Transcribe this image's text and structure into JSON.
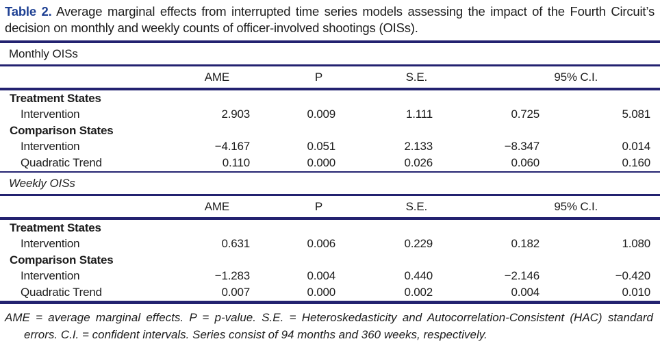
{
  "caption": {
    "label": "Table 2.",
    "text": "Average marginal effects from interrupted time series models assessing the impact of the Fourth Circuit’s decision on monthly and weekly counts of officer-involved shootings (OISs)."
  },
  "columns": {
    "ame": "AME",
    "p": "P",
    "se": "S.E.",
    "ci": "95% C.I."
  },
  "accent_colors": {
    "rule_navy": "#232270",
    "caption_blue": "#1e4093"
  },
  "chart_data": {
    "type": "table",
    "title": "Table 2. Average marginal effects from interrupted time series models assessing the impact of the Fourth Circuit’s decision on monthly and weekly counts of officer-involved shootings (OISs).",
    "column_headers": [
      "",
      "AME",
      "P",
      "S.E.",
      "95% C.I. lower",
      "95% C.I. upper"
    ],
    "sections": [
      {
        "name": "Monthly OISs",
        "rows": [
          [
            "Treatment States",
            "",
            "",
            "",
            "",
            ""
          ],
          [
            "Intervention",
            "2.903",
            "0.009",
            "1.111",
            "0.725",
            "5.081"
          ],
          [
            "Comparison States",
            "",
            "",
            "",
            "",
            ""
          ],
          [
            "Intervention",
            "−4.167",
            "0.051",
            "2.133",
            "−8.347",
            "0.014"
          ],
          [
            "Quadratic Trend",
            "0.110",
            "0.000",
            "0.026",
            "0.060",
            "0.160"
          ]
        ]
      },
      {
        "name": "Weekly OISs",
        "rows": [
          [
            "Treatment States",
            "",
            "",
            "",
            "",
            ""
          ],
          [
            "Intervention",
            "0.631",
            "0.006",
            "0.229",
            "0.182",
            "1.080"
          ],
          [
            "Comparison States",
            "",
            "",
            "",
            "",
            ""
          ],
          [
            "Intervention",
            "−1.283",
            "0.004",
            "0.440",
            "−2.146",
            "−0.420"
          ],
          [
            "Quadratic Trend",
            "0.007",
            "0.000",
            "0.002",
            "0.004",
            "0.010"
          ]
        ]
      }
    ]
  },
  "sections": [
    {
      "name": "Monthly OISs",
      "groups": [
        {
          "label": "Treatment States",
          "rows": [
            {
              "label": "Intervention",
              "values": [
                "2.903",
                "0.009",
                "1.111",
                "0.725",
                "5.081"
              ]
            }
          ]
        },
        {
          "label": "Comparison States",
          "rows": [
            {
              "label": "Intervention",
              "values": [
                "−4.167",
                "0.051",
                "2.133",
                "−8.347",
                "0.014"
              ]
            },
            {
              "label": "Quadratic Trend",
              "values": [
                "0.110",
                "0.000",
                "0.026",
                "0.060",
                "0.160"
              ]
            }
          ]
        }
      ]
    },
    {
      "name": "Weekly OISs",
      "groups": [
        {
          "label": "Treatment States",
          "rows": [
            {
              "label": "Intervention",
              "values": [
                "0.631",
                "0.006",
                "0.229",
                "0.182",
                "1.080"
              ]
            }
          ]
        },
        {
          "label": "Comparison States",
          "rows": [
            {
              "label": "Intervention",
              "values": [
                "−1.283",
                "0.004",
                "0.440",
                "−2.146",
                "−0.420"
              ]
            },
            {
              "label": "Quadratic Trend",
              "values": [
                "0.007",
                "0.000",
                "0.002",
                "0.004",
                "0.010"
              ]
            }
          ]
        }
      ]
    }
  ],
  "footnote": "AME = average marginal effects. P = p-value. S.E. = Heteroskedasticity and Autocorrelation-Consistent (HAC) standard errors. C.I. = confident intervals. Series consist of 94 months and 360 weeks, respectively."
}
